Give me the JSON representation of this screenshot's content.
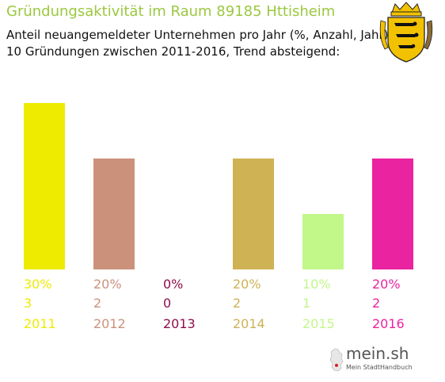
{
  "header": {
    "title": "Gründungsaktivität im Raum 89185 Httisheim",
    "subtitle_line1": "Anteil neuangemeldeter Unternehmen pro Jahr (%, Anzahl, Jahr)",
    "subtitle_line2": "10 Gründungen zwischen 2011-2016, Trend absteigend:"
  },
  "crest": {
    "icon": "baden-wuerttemberg-coat-of-arms"
  },
  "logo": {
    "name": "mein.sh",
    "tagline": "Mein StadtHandbuch",
    "icon": "germany-map-icon"
  },
  "colors": {
    "title": "#9bc83f",
    "bars": [
      "#eeeb00",
      "#cc917b",
      "#8e0e4c",
      "#cfb254",
      "#c2f78a",
      "#ea23a1"
    ]
  },
  "chart_data": {
    "type": "bar",
    "categories": [
      "2011",
      "2012",
      "2013",
      "2014",
      "2015",
      "2016"
    ],
    "values": [
      30,
      20,
      0,
      20,
      10,
      20
    ],
    "counts": [
      3,
      2,
      0,
      2,
      1,
      2
    ],
    "percent_labels": [
      "30%",
      "20%",
      "0%",
      "20%",
      "10%",
      "20%"
    ],
    "count_labels": [
      "3",
      "2",
      "0",
      "2",
      "1",
      "2"
    ],
    "ylim": [
      0,
      30
    ],
    "grid": false,
    "legend": "none"
  }
}
